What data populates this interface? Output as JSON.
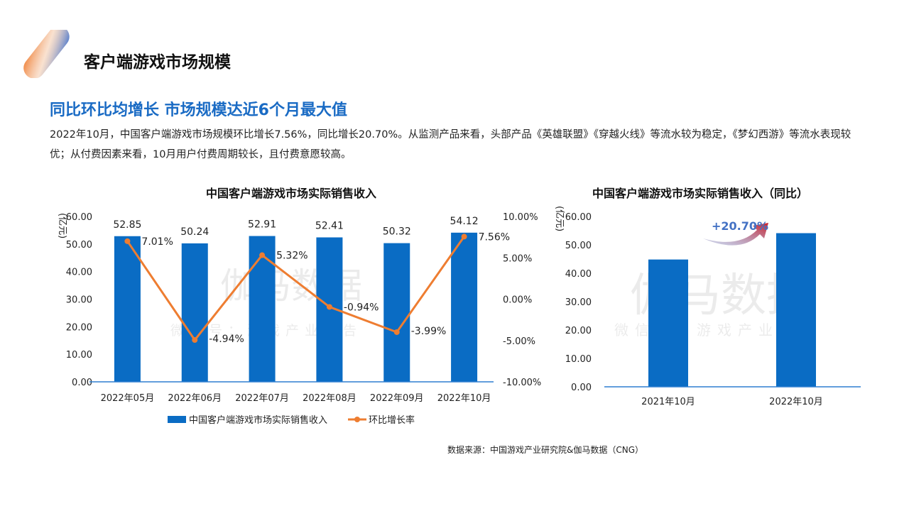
{
  "header": {
    "title": "客户端游戏市场规模"
  },
  "headline": "同比环比均增长 市场规模达近6个月最大值",
  "paragraph": "2022年10月，中国客户端游戏市场规模环比增长7.56%，同比增长20.70%。从监测产品来看，头部产品《英雄联盟》《穿越火线》等流水较为稳定，《梦幻西游》等流水表现较优；从付费因素来看，10月用户付费周期较长，且付费意愿较高。",
  "watermark": {
    "main": "伽马数据",
    "sub": "微信号：游戏产业报告"
  },
  "colors": {
    "bar": "#0a6cc4",
    "line": "#ee7d31",
    "headline": "#1a6bc4",
    "arrow_label": "#4472c4",
    "arrow_tip": "#d0202a"
  },
  "chart_data": [
    {
      "type": "bar+line",
      "title": "中国客户端游戏市场实际销售收入",
      "ylabel": "(亿元)",
      "categories": [
        "2022年05月",
        "2022年06月",
        "2022年07月",
        "2022年08月",
        "2022年09月",
        "2022年10月"
      ],
      "ylim": [
        0,
        60
      ],
      "yticks": [
        "0.00",
        "10.00",
        "20.00",
        "30.00",
        "40.00",
        "50.00",
        "60.00"
      ],
      "y2lim": [
        -10,
        10
      ],
      "y2ticks": [
        "-10.00%",
        "-5.00%",
        "0.00%",
        "5.00%",
        "10.00%"
      ],
      "grid": false,
      "legend_position": "bottom",
      "series": [
        {
          "name": "中国客户端游戏市场实际销售收入",
          "type": "bar",
          "axis": "left",
          "values": [
            52.85,
            50.24,
            52.91,
            52.41,
            50.32,
            54.12
          ],
          "labels": [
            "52.85",
            "50.24",
            "52.91",
            "52.41",
            "50.32",
            "54.12"
          ]
        },
        {
          "name": "环比增长率",
          "type": "line",
          "axis": "right",
          "values": [
            7.01,
            -4.94,
            5.32,
            -0.94,
            -3.99,
            7.56
          ],
          "labels": [
            "7.01%",
            "-4.94%",
            "5.32%",
            "-0.94%",
            "-3.99%",
            "7.56%"
          ]
        }
      ]
    },
    {
      "type": "bar",
      "title": "中国客户端游戏市场实际销售收入（同比）",
      "ylabel": "(亿元)",
      "categories": [
        "2021年10月",
        "2022年10月"
      ],
      "values": [
        44.84,
        54.12
      ],
      "ylim": [
        0,
        60
      ],
      "yticks": [
        "0.00",
        "10.00",
        "20.00",
        "30.00",
        "40.00",
        "50.00",
        "60.00"
      ],
      "grid": false,
      "annotation": "+20.70%"
    }
  ],
  "footer": {
    "source": "数据来源：中国游戏产业研究院&伽马数据（CNG）"
  }
}
